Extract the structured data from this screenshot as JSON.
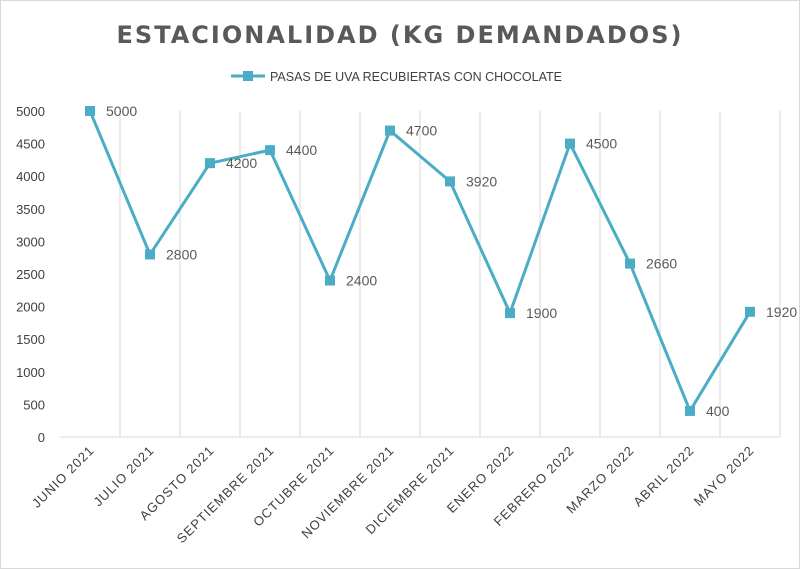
{
  "chart_data": {
    "type": "line",
    "title": "ESTACIONALIDAD (KG DEMANDADOS)",
    "categories": [
      "JUNIO 2021",
      "JULIO 2021",
      "AGOSTO 2021",
      "SEPTIEMBRE 2021",
      "OCTUBRE 2021",
      "NOVIEMBRE 2021",
      "DICIEMBRE 2021",
      "ENERO 2022",
      "FEBRERO 2022",
      "MARZO 2022",
      "ABRIL 2022",
      "MAYO 2022"
    ],
    "series": [
      {
        "name": "PASAS DE UVA RECUBIERTAS CON CHOCOLATE",
        "values": [
          5000,
          2800,
          4200,
          4400,
          2400,
          4700,
          3920,
          1900,
          4500,
          2660,
          400,
          1920
        ],
        "color": "#4bacc6"
      }
    ],
    "ylim": [
      0,
      5000
    ],
    "yticks": [
      0,
      500,
      1000,
      1500,
      2000,
      2500,
      3000,
      3500,
      4000,
      4500,
      5000
    ],
    "grid": "vertical",
    "legend_position": "top",
    "data_labels": true
  }
}
